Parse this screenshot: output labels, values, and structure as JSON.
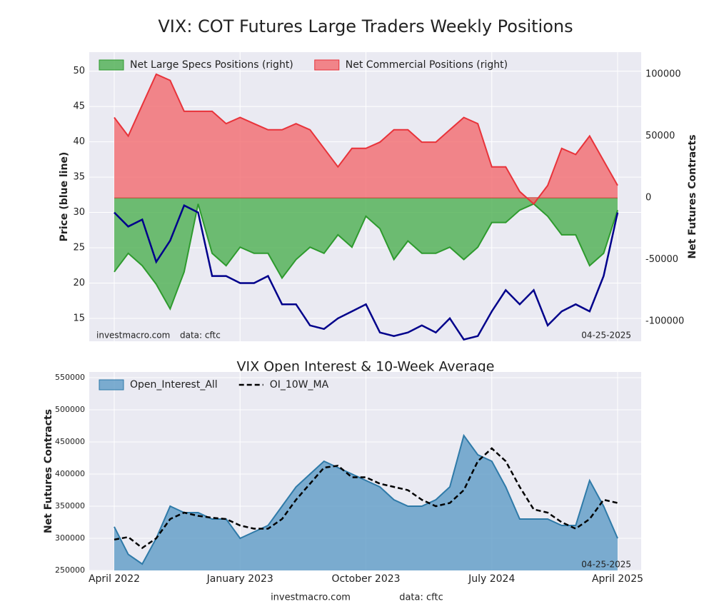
{
  "chart_data": [
    {
      "type": "area",
      "title": "VIX: COT Futures Large Traders Weekly Positions",
      "ylabel": "Price (blue line)",
      "y2label": "Net Futures Contracts",
      "ylim": [
        11.76,
        52.7
      ],
      "yticks": [
        15,
        20,
        25,
        30,
        35,
        40,
        45,
        50
      ],
      "y2lim": [
        -116200,
        117900
      ],
      "y2ticks": [
        -100000,
        -50000,
        0,
        50000,
        100000
      ],
      "grid": true,
      "legend": "upper left",
      "annotations": [
        "investmacro.com",
        "data: cftc",
        "04-25-2025"
      ],
      "x": [
        "2022-04",
        "2022-05",
        "2022-06",
        "2022-07",
        "2022-08",
        "2022-09",
        "2022-10",
        "2022-11",
        "2022-12",
        "2023-01",
        "2023-02",
        "2023-03",
        "2023-04",
        "2023-05",
        "2023-06",
        "2023-07",
        "2023-08",
        "2023-09",
        "2023-10",
        "2023-11",
        "2023-12",
        "2024-01",
        "2024-02",
        "2024-03",
        "2024-04",
        "2024-05",
        "2024-06",
        "2024-07",
        "2024-08",
        "2024-09",
        "2024-10",
        "2024-11",
        "2024-12",
        "2025-01",
        "2025-02",
        "2025-03",
        "2025-04"
      ],
      "series": [
        {
          "name": "Net Large Specs Positions (right)",
          "kind": "area",
          "axis": "y2",
          "color": "#2e9a2e",
          "fill": "#4caf50",
          "values": [
            -60000,
            -45000,
            -55000,
            -70000,
            -90000,
            -60000,
            -5000,
            -45000,
            -55000,
            -40000,
            -45000,
            -45000,
            -65000,
            -50000,
            -40000,
            -45000,
            -30000,
            -40000,
            -15000,
            -25000,
            -50000,
            -35000,
            -45000,
            -45000,
            -40000,
            -50000,
            -40000,
            -20000,
            -20000,
            -10000,
            -5000,
            -15000,
            -30000,
            -30000,
            -55000,
            -45000,
            -10000
          ]
        },
        {
          "name": "Net Commercial Positions (right)",
          "kind": "area",
          "axis": "y2",
          "color": "#e8333a",
          "fill": "#f26a6e",
          "values": [
            65000,
            50000,
            75000,
            100000,
            95000,
            70000,
            70000,
            70000,
            60000,
            65000,
            60000,
            55000,
            55000,
            60000,
            55000,
            40000,
            25000,
            40000,
            40000,
            45000,
            55000,
            55000,
            45000,
            45000,
            55000,
            65000,
            60000,
            25000,
            25000,
            5000,
            -5000,
            10000,
            40000,
            35000,
            50000,
            30000,
            10000
          ]
        },
        {
          "kind": "line",
          "axis": "y",
          "color": "#00008b",
          "values": [
            30,
            28,
            29,
            23,
            26,
            31,
            30,
            21,
            21,
            20,
            20,
            21,
            17,
            17,
            14,
            13.5,
            15,
            16,
            17,
            13,
            12.5,
            13,
            14,
            13,
            15,
            12,
            12.5,
            16,
            19,
            17,
            19,
            14,
            16,
            17,
            16,
            21,
            30
          ]
        }
      ]
    },
    {
      "type": "area",
      "title": "VIX Open Interest & 10-Week Average",
      "ylabel": "Net Futures Contracts",
      "ylim": [
        250000,
        558900
      ],
      "yticks": [
        250000,
        300000,
        350000,
        400000,
        450000,
        500000,
        550000
      ],
      "grid": true,
      "legend": "upper left",
      "annotations": [
        "04-25-2025"
      ],
      "x": [
        "2022-04",
        "2022-05",
        "2022-06",
        "2022-07",
        "2022-08",
        "2022-09",
        "2022-10",
        "2022-11",
        "2022-12",
        "2023-01",
        "2023-02",
        "2023-03",
        "2023-04",
        "2023-05",
        "2023-06",
        "2023-07",
        "2023-08",
        "2023-09",
        "2023-10",
        "2023-11",
        "2023-12",
        "2024-01",
        "2024-02",
        "2024-03",
        "2024-04",
        "2024-05",
        "2024-06",
        "2024-07",
        "2024-08",
        "2024-09",
        "2024-10",
        "2024-11",
        "2024-12",
        "2025-01",
        "2025-02",
        "2025-03",
        "2025-04"
      ],
      "xticks": [
        {
          "value": "2022-04",
          "label": "April 2022"
        },
        {
          "value": "2023-01",
          "label": "January 2023"
        },
        {
          "value": "2023-10",
          "label": "October 2023"
        },
        {
          "value": "2024-07",
          "label": "July 2024"
        },
        {
          "value": "2025-04",
          "label": "April 2025"
        }
      ],
      "series": [
        {
          "name": "Open_Interest_All",
          "kind": "area",
          "axis": "y",
          "color": "#2f7aa8",
          "fill": "#5e9bc6",
          "values": [
            318000,
            275000,
            260000,
            300000,
            350000,
            340000,
            340000,
            330000,
            330000,
            300000,
            310000,
            320000,
            350000,
            380000,
            400000,
            420000,
            410000,
            400000,
            390000,
            380000,
            360000,
            350000,
            350000,
            360000,
            380000,
            460000,
            430000,
            420000,
            380000,
            330000,
            330000,
            330000,
            320000,
            320000,
            390000,
            350000,
            300000
          ]
        },
        {
          "name": "OI_10W_MA",
          "kind": "line",
          "dash": true,
          "axis": "y",
          "color": "#000000",
          "values": [
            298000,
            302000,
            285000,
            300000,
            330000,
            340000,
            335000,
            332000,
            330000,
            320000,
            315000,
            315000,
            330000,
            360000,
            385000,
            410000,
            413000,
            395000,
            395000,
            385000,
            380000,
            375000,
            360000,
            350000,
            355000,
            375000,
            420000,
            440000,
            420000,
            380000,
            345000,
            340000,
            325000,
            315000,
            330000,
            360000,
            355000
          ]
        }
      ]
    }
  ],
  "footer": {
    "site": "investmacro.com",
    "source": "data: cftc"
  }
}
